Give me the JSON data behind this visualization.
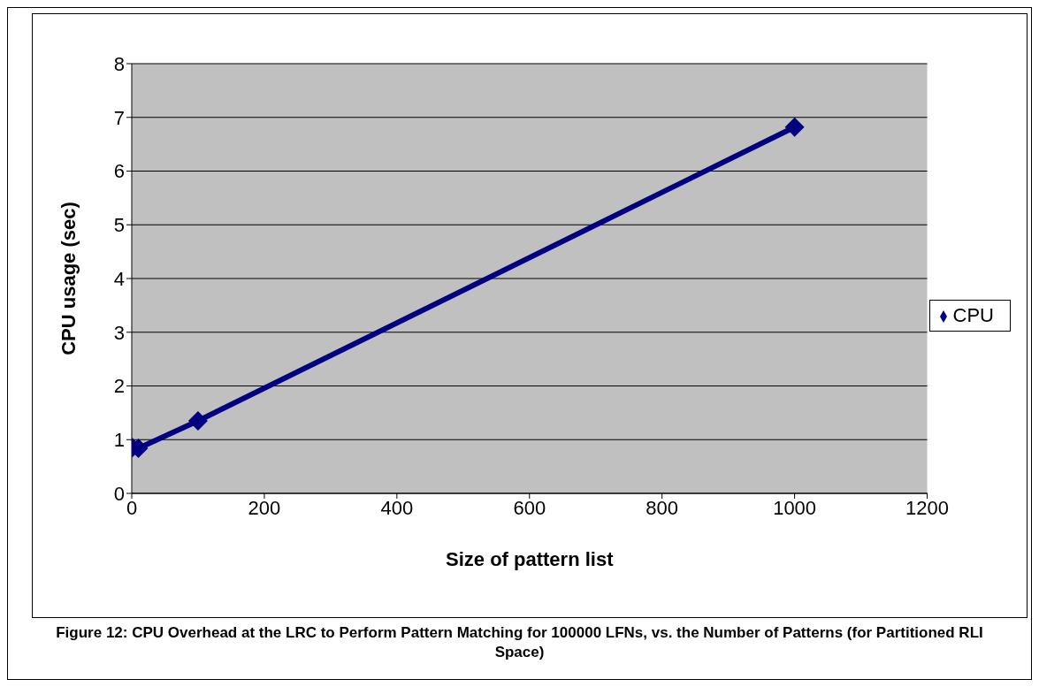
{
  "chart_data": {
    "type": "line",
    "xlabel": "Size of pattern list",
    "ylabel": "CPU usage (sec)",
    "x": [
      1,
      10,
      100,
      1000
    ],
    "series": [
      {
        "name": "CPU",
        "color": "#000080",
        "values": [
          0.85,
          0.84,
          1.35,
          6.82
        ]
      }
    ],
    "xlim": [
      0,
      1200
    ],
    "xticks": [
      0,
      200,
      400,
      600,
      800,
      1000,
      1200
    ],
    "ylim": [
      0,
      8
    ],
    "yticks": [
      0,
      1,
      2,
      3,
      4,
      5,
      6,
      7,
      8
    ],
    "grid": "y",
    "legend": "right",
    "marker": "diamond",
    "line_style": "solid",
    "annotations": [
      "Figure 12: CPU Overhead at the LRC to Perform Pattern Matching for 100000 LFNs, vs. the Number of Patterns (for Partitioned RLI Space)"
    ]
  }
}
